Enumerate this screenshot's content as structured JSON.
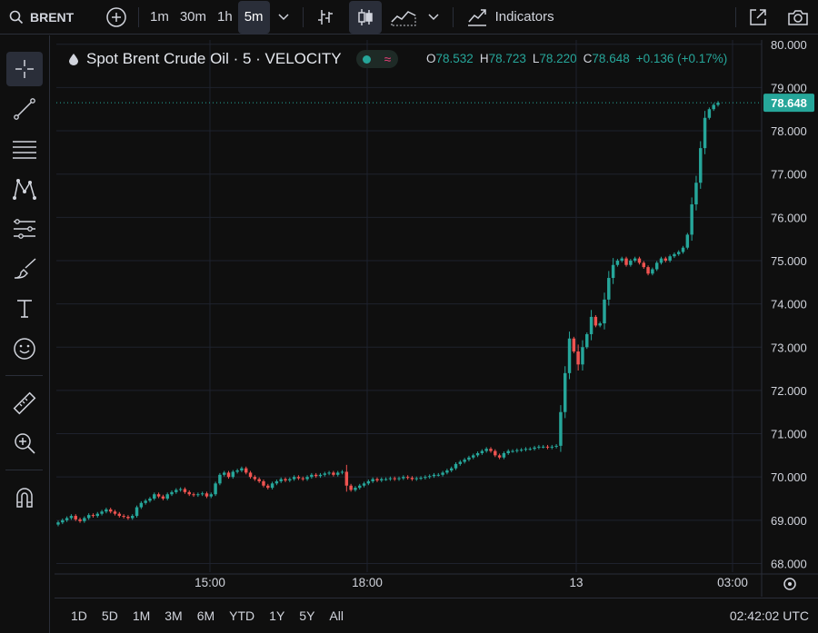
{
  "toolbar": {
    "symbol": "BRENT",
    "intervals": [
      "1m",
      "30m",
      "1h",
      "5m"
    ],
    "active_interval": "5m",
    "indicators_label": "Indicators"
  },
  "legend": {
    "title": "Spot Brent Crude Oil · 5 · VELOCITY",
    "open_label": "O",
    "open": "78.532",
    "high_label": "H",
    "high": "78.723",
    "low_label": "L",
    "low": "78.220",
    "close_label": "C",
    "close": "78.648",
    "change": "+0.136 (+0.17%)"
  },
  "colors": {
    "up": "#26a69a",
    "down": "#ef5350",
    "background": "#0f0f0f",
    "grid": "#1e222d",
    "text": "#d1d4dc"
  },
  "last_price": "78.648",
  "ranges": [
    "1D",
    "5D",
    "1M",
    "3M",
    "6M",
    "YTD",
    "1Y",
    "5Y",
    "All"
  ],
  "clock": "02:42:02 UTC",
  "chart_data": {
    "type": "candlestick",
    "title": "Spot Brent Crude Oil · 5 · VELOCITY",
    "y_ticks": [
      "80.000",
      "79.000",
      "78.000",
      "77.000",
      "76.000",
      "75.000",
      "74.000",
      "73.000",
      "72.000",
      "71.000",
      "70.000",
      "69.000",
      "68.000"
    ],
    "x_ticks": [
      "15:00",
      "18:00",
      "13",
      "03:00"
    ],
    "ylim": [
      67.8,
      80.1
    ],
    "grid": true,
    "last_price": 78.648,
    "series_close": [
      68.95,
      69.0,
      69.05,
      69.1,
      69.02,
      68.98,
      69.05,
      69.12,
      69.1,
      69.15,
      69.2,
      69.25,
      69.2,
      69.15,
      69.1,
      69.08,
      69.05,
      69.1,
      69.3,
      69.4,
      69.45,
      69.5,
      69.6,
      69.55,
      69.5,
      69.6,
      69.65,
      69.7,
      69.72,
      69.65,
      69.6,
      69.58,
      69.6,
      69.62,
      69.55,
      69.6,
      69.85,
      70.05,
      70.1,
      70.0,
      70.12,
      70.15,
      70.2,
      70.1,
      70.0,
      69.95,
      69.9,
      69.8,
      69.75,
      69.85,
      69.9,
      69.95,
      69.92,
      69.95,
      70.0,
      69.97,
      69.95,
      70.0,
      70.05,
      70.02,
      70.05,
      70.08,
      70.1,
      70.05,
      70.1,
      70.12,
      69.8,
      69.7,
      69.75,
      69.8,
      69.85,
      69.9,
      69.95,
      69.92,
      69.95,
      69.95,
      69.97,
      69.95,
      69.97,
      70.0,
      69.98,
      69.95,
      69.97,
      69.98,
      70.0,
      70.02,
      70.05,
      70.05,
      70.1,
      70.15,
      70.2,
      70.3,
      70.35,
      70.4,
      70.45,
      70.5,
      70.55,
      70.6,
      70.65,
      70.6,
      70.5,
      70.45,
      70.55,
      70.6,
      70.6,
      70.62,
      70.63,
      70.65,
      70.65,
      70.68,
      70.7,
      70.7,
      70.68,
      70.7,
      70.72,
      71.5,
      72.4,
      73.2,
      72.9,
      72.6,
      73.0,
      73.3,
      73.7,
      73.5,
      73.55,
      74.1,
      74.6,
      74.9,
      75.0,
      75.05,
      74.9,
      75.0,
      75.05,
      74.95,
      74.85,
      74.7,
      74.8,
      74.95,
      75.05,
      75.0,
      75.1,
      75.15,
      75.2,
      75.3,
      75.6,
      76.3,
      76.8,
      77.6,
      78.3,
      78.5,
      78.6,
      78.648
    ]
  }
}
